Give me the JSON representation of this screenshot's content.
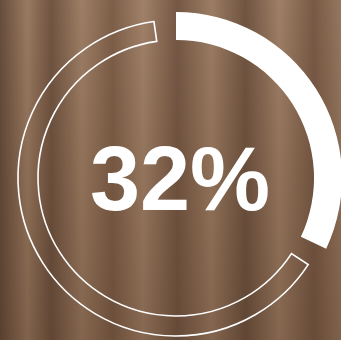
{
  "chart_data": {
    "type": "donut",
    "values": [
      32
    ],
    "value_labels": [
      "32%"
    ],
    "color": "#ffffff",
    "ylim": [
      0,
      100
    ],
    "data_labels": true
  }
}
